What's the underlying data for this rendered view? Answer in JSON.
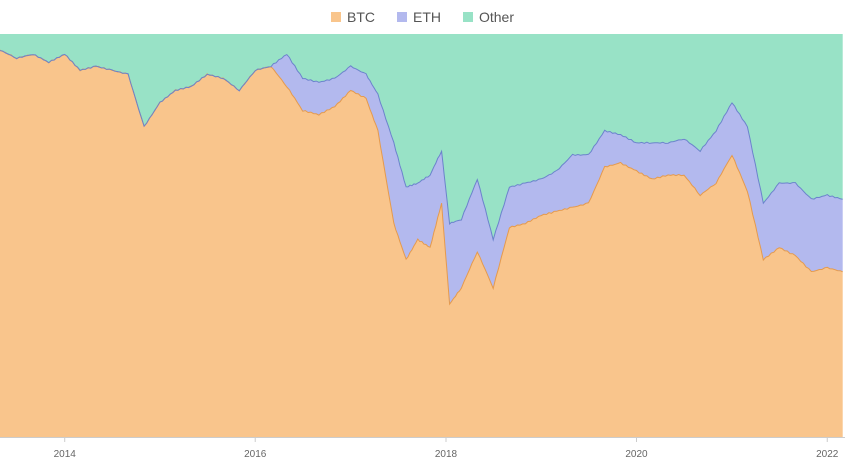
{
  "chart_data": {
    "type": "area",
    "stacked": true,
    "normalized": true,
    "y_unit": "percent",
    "ylim": [
      0,
      100
    ],
    "grid": false,
    "legend_position": "top-center",
    "x_ticks": [
      "2014",
      "2016",
      "2018",
      "2020",
      "2022"
    ],
    "x": [
      "2013-04-28",
      "2013-07-01",
      "2013-09-01",
      "2013-11-01",
      "2014-01-01",
      "2014-03-01",
      "2014-05-01",
      "2014-07-01",
      "2014-09-01",
      "2014-11-01",
      "2015-01-01",
      "2015-03-01",
      "2015-05-01",
      "2015-07-01",
      "2015-09-01",
      "2015-11-01",
      "2016-01-01",
      "2016-03-01",
      "2016-05-01",
      "2016-07-01",
      "2016-09-01",
      "2016-11-01",
      "2017-01-01",
      "2017-03-01",
      "2017-04-15",
      "2017-06-15",
      "2017-08-01",
      "2017-09-15",
      "2017-11-01",
      "2017-12-15",
      "2018-01-15",
      "2018-03-01",
      "2018-05-01",
      "2018-07-01",
      "2018-09-01",
      "2018-11-01",
      "2019-01-01",
      "2019-03-01",
      "2019-05-01",
      "2019-07-01",
      "2019-09-01",
      "2019-11-01",
      "2020-01-01",
      "2020-03-01",
      "2020-05-01",
      "2020-07-01",
      "2020-09-01",
      "2020-11-01",
      "2021-01-01",
      "2021-03-01",
      "2021-05-01",
      "2021-07-01",
      "2021-09-01",
      "2021-11-01",
      "2022-01-01",
      "2022-03-01"
    ],
    "series": [
      {
        "name": "BTC",
        "color": "#f9c58c",
        "line_color": "#e59a4d",
        "values": [
          96,
          94,
          95,
          93,
          95,
          91,
          92,
          91,
          90,
          77,
          83,
          86,
          87,
          90,
          89,
          86,
          91,
          92,
          87,
          81,
          80,
          82,
          86,
          84,
          76,
          53,
          44,
          49,
          47,
          58,
          33,
          37,
          46,
          37,
          52,
          53,
          55,
          56,
          57,
          58,
          67,
          68,
          66,
          64,
          65,
          65,
          60,
          63,
          70,
          61,
          44,
          47,
          45,
          41,
          42,
          41
        ]
      },
      {
        "name": "ETH",
        "color": "#b3b9ee",
        "line_color": "#6b83cc",
        "values": [
          0,
          0,
          0,
          0,
          0,
          0,
          0,
          0,
          0,
          0,
          0,
          0,
          0,
          0,
          0,
          0,
          0,
          0,
          8,
          8,
          8,
          7,
          6,
          6,
          9,
          20,
          18,
          14,
          18,
          13,
          20,
          17,
          18,
          12,
          10,
          10,
          9,
          10,
          13,
          12,
          9,
          7,
          7,
          9,
          8,
          9,
          11,
          13,
          13,
          16,
          14,
          16,
          18,
          18,
          18,
          18
        ]
      },
      {
        "name": "Other",
        "color": "#98e2c6",
        "line_color": "#98e2c6",
        "values": [
          4,
          6,
          5,
          7,
          5,
          9,
          8,
          9,
          10,
          23,
          17,
          14,
          13,
          10,
          11,
          14,
          9,
          8,
          5,
          11,
          12,
          11,
          8,
          10,
          15,
          27,
          38,
          37,
          35,
          29,
          47,
          46,
          36,
          51,
          38,
          37,
          36,
          34,
          30,
          30,
          24,
          25,
          27,
          27,
          27,
          26,
          29,
          24,
          17,
          23,
          42,
          37,
          37,
          41,
          40,
          41
        ]
      }
    ]
  }
}
